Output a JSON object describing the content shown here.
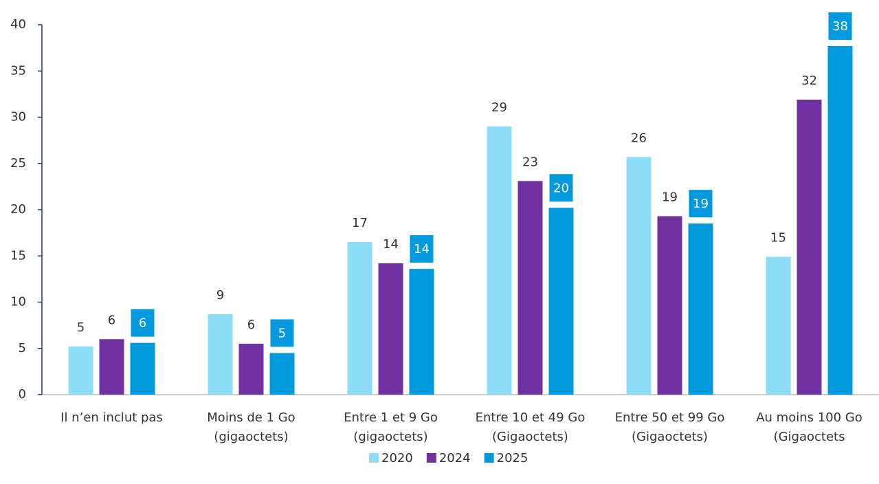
{
  "chart_data": {
    "type": "bar",
    "categories": [
      "Il n’en inclut pas",
      "Moins de 1 Go\n(gigaoctets)",
      "Entre 1 et 9 Go\n(gigaoctets)",
      "Entre 10 et 49 Go\n(Gigaoctets)",
      "Entre 50 et 99 Go\n(Gigaoctets)",
      "Au moins 100 Go\n(Gigaoctets"
    ],
    "series": [
      {
        "name": "2020",
        "color": "#8ddcf8",
        "values": [
          5.2,
          8.7,
          16.5,
          29.0,
          25.7,
          14.9
        ],
        "value_labels": [
          "5",
          "9",
          "17",
          "29",
          "26",
          "15"
        ]
      },
      {
        "name": "2024",
        "color": "#7030a0",
        "values": [
          6.0,
          5.5,
          14.2,
          23.1,
          19.3,
          31.9
        ],
        "value_labels": [
          "6",
          "6",
          "14",
          "23",
          "19",
          "32"
        ]
      },
      {
        "name": "2025",
        "color": "#0099dd",
        "values": [
          5.6,
          4.5,
          13.6,
          20.2,
          18.5,
          37.7
        ],
        "value_labels": [
          "6",
          "5",
          "14",
          "20",
          "19",
          "38"
        ]
      }
    ],
    "ylim": [
      0,
      40
    ],
    "yticks": [
      0,
      5,
      10,
      15,
      20,
      25,
      30,
      35,
      40
    ],
    "grid": false,
    "legend": "bottom"
  }
}
